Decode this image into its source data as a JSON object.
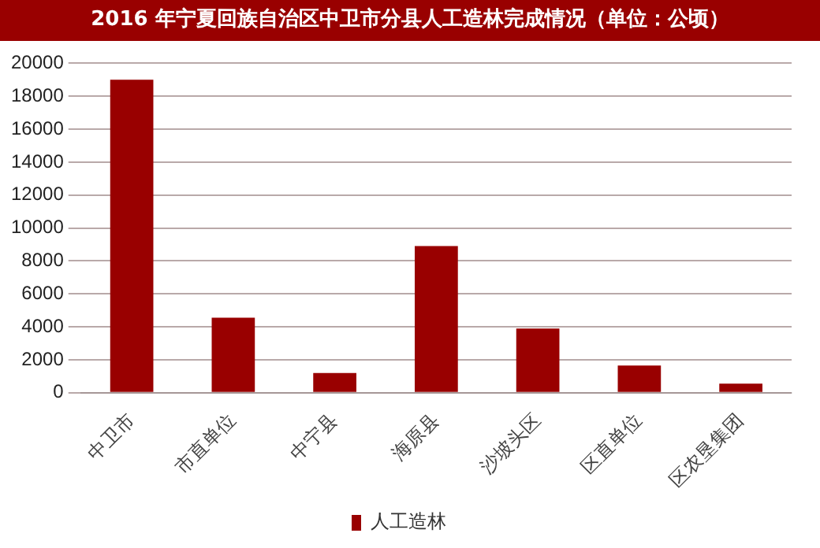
{
  "chart_data": {
    "type": "bar",
    "title": "2016 年宁夏回族自治区中卫市分县人工造林完成情况（单位：公顷）",
    "categories": [
      "中卫市",
      "市直单位",
      "中宁县",
      "海原县",
      "沙坡头区",
      "区直单位",
      "区农垦集团"
    ],
    "series": [
      {
        "name": "人工造林",
        "color": "#990000",
        "values": [
          19000,
          4550,
          1200,
          8900,
          3900,
          1650,
          550
        ]
      }
    ],
    "ylim": [
      0,
      20000
    ],
    "yticks": [
      0,
      2000,
      4000,
      6000,
      8000,
      10000,
      12000,
      14000,
      16000,
      18000,
      20000
    ],
    "grid": "y",
    "legend": "bottom"
  }
}
